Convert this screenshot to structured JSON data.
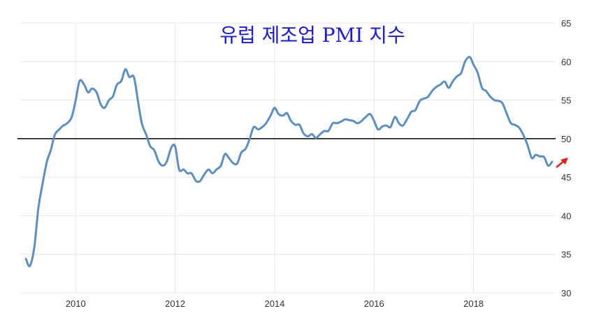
{
  "chart_data": {
    "type": "line",
    "title": "유럽 제조업 PMI 지수",
    "xlabel": "",
    "ylabel": "",
    "xlim": [
      2008.9,
      2019.65
    ],
    "ylim": [
      30,
      65
    ],
    "x_ticks": [
      "2010",
      "2012",
      "2014",
      "2016",
      "2018"
    ],
    "y_ticks": [
      "30",
      "35",
      "40",
      "45",
      "50",
      "55",
      "60",
      "65"
    ],
    "y_axis_position": "right",
    "grid": true,
    "reference_line": 50,
    "series": [
      {
        "color": "#5b8fbf",
        "points": [
          [
            2009.0,
            34.4
          ],
          [
            2009.08,
            33.5
          ],
          [
            2009.17,
            36.0
          ],
          [
            2009.25,
            41.0
          ],
          [
            2009.33,
            44.0
          ],
          [
            2009.42,
            47.0
          ],
          [
            2009.5,
            48.5
          ],
          [
            2009.58,
            50.5
          ],
          [
            2009.67,
            51.2
          ],
          [
            2009.75,
            51.7
          ],
          [
            2009.83,
            52.0
          ],
          [
            2009.92,
            52.8
          ],
          [
            2010.0,
            55.0
          ],
          [
            2010.08,
            57.5
          ],
          [
            2010.17,
            57.0
          ],
          [
            2010.25,
            56.0
          ],
          [
            2010.33,
            56.5
          ],
          [
            2010.42,
            56.0
          ],
          [
            2010.5,
            54.5
          ],
          [
            2010.58,
            54.0
          ],
          [
            2010.67,
            55.0
          ],
          [
            2010.75,
            55.5
          ],
          [
            2010.83,
            57.0
          ],
          [
            2010.92,
            57.5
          ],
          [
            2011.0,
            59.0
          ],
          [
            2011.08,
            58.0
          ],
          [
            2011.17,
            58.0
          ],
          [
            2011.25,
            55.0
          ],
          [
            2011.33,
            52.0
          ],
          [
            2011.42,
            50.5
          ],
          [
            2011.5,
            49.0
          ],
          [
            2011.58,
            48.5
          ],
          [
            2011.67,
            47.0
          ],
          [
            2011.75,
            46.5
          ],
          [
            2011.83,
            47.0
          ],
          [
            2011.92,
            48.8
          ],
          [
            2012.0,
            49.0
          ],
          [
            2012.08,
            46.0
          ],
          [
            2012.17,
            46.0
          ],
          [
            2012.25,
            45.5
          ],
          [
            2012.33,
            45.5
          ],
          [
            2012.42,
            44.5
          ],
          [
            2012.5,
            44.5
          ],
          [
            2012.58,
            45.3
          ],
          [
            2012.67,
            46.0
          ],
          [
            2012.75,
            45.5
          ],
          [
            2012.83,
            46.0
          ],
          [
            2012.92,
            46.5
          ],
          [
            2013.0,
            48.0
          ],
          [
            2013.08,
            47.5
          ],
          [
            2013.17,
            46.8
          ],
          [
            2013.25,
            46.8
          ],
          [
            2013.33,
            48.2
          ],
          [
            2013.42,
            48.7
          ],
          [
            2013.5,
            50.0
          ],
          [
            2013.58,
            51.5
          ],
          [
            2013.67,
            51.2
          ],
          [
            2013.75,
            51.5
          ],
          [
            2013.83,
            52.0
          ],
          [
            2013.92,
            53.0
          ],
          [
            2014.0,
            54.0
          ],
          [
            2014.08,
            53.2
          ],
          [
            2014.17,
            53.0
          ],
          [
            2014.25,
            53.3
          ],
          [
            2014.33,
            52.3
          ],
          [
            2014.42,
            51.8
          ],
          [
            2014.5,
            51.8
          ],
          [
            2014.58,
            50.7
          ],
          [
            2014.67,
            50.3
          ],
          [
            2014.75,
            50.6
          ],
          [
            2014.83,
            50.1
          ],
          [
            2014.92,
            50.6
          ],
          [
            2015.0,
            51.0
          ],
          [
            2015.08,
            51.0
          ],
          [
            2015.17,
            52.0
          ],
          [
            2015.25,
            52.0
          ],
          [
            2015.33,
            52.2
          ],
          [
            2015.42,
            52.5
          ],
          [
            2015.5,
            52.4
          ],
          [
            2015.58,
            52.3
          ],
          [
            2015.67,
            52.0
          ],
          [
            2015.75,
            52.3
          ],
          [
            2015.83,
            52.8
          ],
          [
            2015.92,
            53.2
          ],
          [
            2016.0,
            52.3
          ],
          [
            2016.08,
            51.2
          ],
          [
            2016.17,
            51.6
          ],
          [
            2016.25,
            51.7
          ],
          [
            2016.33,
            51.5
          ],
          [
            2016.42,
            52.8
          ],
          [
            2016.5,
            52.0
          ],
          [
            2016.58,
            51.7
          ],
          [
            2016.67,
            52.6
          ],
          [
            2016.75,
            53.5
          ],
          [
            2016.83,
            53.7
          ],
          [
            2016.92,
            54.9
          ],
          [
            2017.0,
            55.2
          ],
          [
            2017.08,
            55.4
          ],
          [
            2017.17,
            56.2
          ],
          [
            2017.25,
            56.7
          ],
          [
            2017.33,
            57.0
          ],
          [
            2017.42,
            57.4
          ],
          [
            2017.5,
            56.6
          ],
          [
            2017.58,
            57.4
          ],
          [
            2017.67,
            58.1
          ],
          [
            2017.75,
            58.5
          ],
          [
            2017.83,
            60.0
          ],
          [
            2017.92,
            60.6
          ],
          [
            2018.0,
            59.6
          ],
          [
            2018.08,
            58.6
          ],
          [
            2018.17,
            56.6
          ],
          [
            2018.25,
            56.2
          ],
          [
            2018.33,
            55.5
          ],
          [
            2018.42,
            55.0
          ],
          [
            2018.5,
            54.9
          ],
          [
            2018.58,
            54.6
          ],
          [
            2018.67,
            53.2
          ],
          [
            2018.75,
            52.0
          ],
          [
            2018.83,
            51.8
          ],
          [
            2018.92,
            51.4
          ],
          [
            2019.0,
            50.5
          ],
          [
            2019.08,
            49.3
          ],
          [
            2019.17,
            47.5
          ],
          [
            2019.25,
            47.9
          ],
          [
            2019.33,
            47.7
          ],
          [
            2019.42,
            47.6
          ],
          [
            2019.5,
            46.5
          ],
          [
            2019.58,
            47.0
          ]
        ]
      }
    ]
  }
}
